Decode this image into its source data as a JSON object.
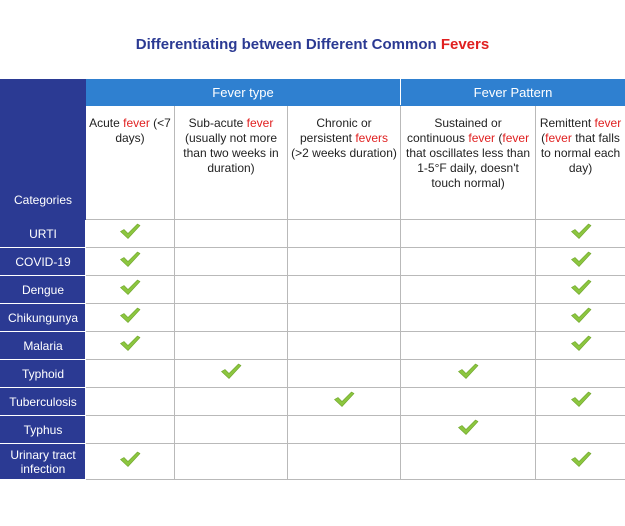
{
  "title": {
    "prefix": "Differentiating between Different Common ",
    "highlight": "Fevers"
  },
  "table": {
    "categories_header": "Categories",
    "groups": [
      {
        "label": "Fever type"
      },
      {
        "label": "Fever Pattern"
      }
    ],
    "columns": [
      {
        "pre": "Acute ",
        "red": "fever",
        "post": " (<7 days)"
      },
      {
        "pre": "Sub-acute ",
        "red": "fever",
        "post": " (usually not more than two weeks in duration)"
      },
      {
        "pre": "Chronic or persistent ",
        "red": "fevers",
        "post": " (>2 weeks duration)"
      },
      {
        "pre": "Sustained or continuous ",
        "red": "fever",
        "mid": " (",
        "red2": "fever",
        "post": " that oscillates less than 1-5°F daily, doesn't touch normal)"
      },
      {
        "pre": "Remittent ",
        "red": "fever",
        "mid": " (",
        "red2": "fever",
        "post": " that falls to normal each day)"
      }
    ],
    "rows": [
      {
        "label": "URTI",
        "checks": [
          true,
          false,
          false,
          false,
          true
        ]
      },
      {
        "label": "COVID-19",
        "checks": [
          true,
          false,
          false,
          false,
          true
        ]
      },
      {
        "label": "Dengue",
        "checks": [
          true,
          false,
          false,
          false,
          true
        ]
      },
      {
        "label": "Chikungunya",
        "checks": [
          true,
          false,
          false,
          false,
          true
        ]
      },
      {
        "label": "Malaria",
        "checks": [
          true,
          false,
          false,
          false,
          true
        ]
      },
      {
        "label": "Typhoid",
        "checks": [
          false,
          true,
          false,
          true,
          false
        ]
      },
      {
        "label": "Tuberculosis",
        "checks": [
          false,
          false,
          true,
          false,
          true
        ]
      },
      {
        "label": "Typhus",
        "checks": [
          false,
          false,
          false,
          true,
          false
        ]
      },
      {
        "label": "Urinary tract infection",
        "checks": [
          true,
          false,
          false,
          false,
          true
        ]
      }
    ],
    "colors": {
      "header_dark": "#2b3a93",
      "header_light": "#2f80d0",
      "highlight": "#e02020",
      "check": "#8cc63f"
    },
    "check_icon": "checkmark-icon"
  }
}
